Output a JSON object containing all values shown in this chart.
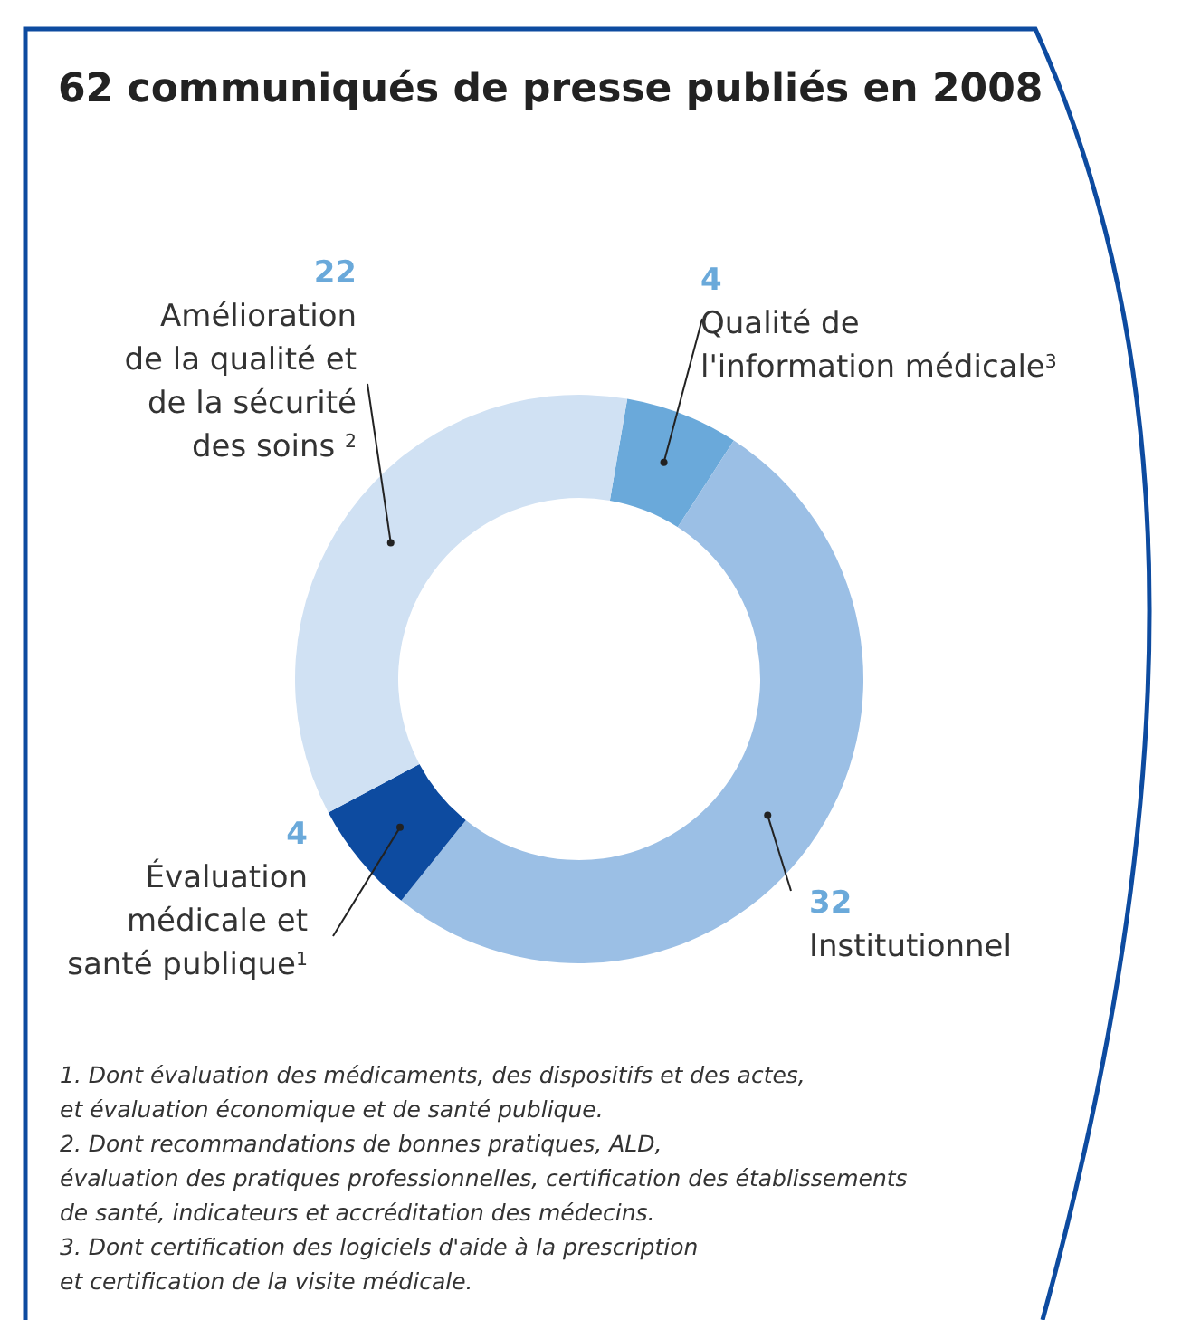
{
  "chart_data": {
    "type": "donut",
    "title": "62 communiqués de presse publiés en 2008",
    "categories": [
      "Qualité de\nl'information médicale$^{3}$",
      "Institutionnel",
      "Évaluation\nmédicale et\nsanté publique$^{1}$",
      "Amélioration\nde la qualité et\nde la sécurité\ndes soins $^{2}$"
    ],
    "values": [
      4,
      32,
      4,
      22
    ],
    "colors": [
      "#6aa9da",
      "#9bbfe5",
      "#0d4ba0",
      "#d0e1f3"
    ],
    "data_labels": true,
    "annotations": [
      "1. Dont évaluation des médicaments, des dispositifs et des actes,\net évaluation économique et de santé publique.",
      "2. Dont recommandations de bonnes pratiques, ALD,\névaluation des pratiques professionnelles, certification des établissements\nde santé, indicateurs et accréditation des médecins.",
      "3. Dont certification des logiciels d'aide à la prescription\net certification de la visite médicale."
    ]
  }
}
